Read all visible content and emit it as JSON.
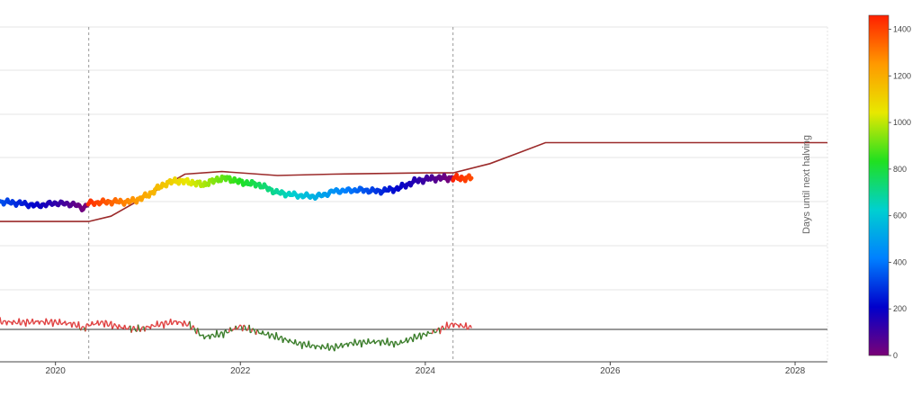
{
  "chart_data": {
    "type": "line",
    "ylabel": "Days until next halving",
    "x_ticks": [
      "2020",
      "2022",
      "2024",
      "2026",
      "2028"
    ],
    "x_tick_years": [
      2020,
      2022,
      2024,
      2026,
      2028
    ],
    "x_range": [
      2019.4,
      2028.35
    ],
    "halving_markers": [
      2020.36,
      2024.3
    ],
    "colorbar": {
      "ticks": [
        "0",
        "200",
        "400",
        "600",
        "800",
        "1000",
        "1200",
        "1400"
      ],
      "tick_values": [
        0,
        200,
        400,
        600,
        800,
        1000,
        1200,
        1400
      ],
      "range": [
        0,
        1460
      ],
      "colorscale": [
        "#7a0177",
        "#0000cc",
        "#0080ff",
        "#00d0d0",
        "#20e020",
        "#e8e800",
        "#ff9900",
        "#ff2000"
      ]
    },
    "colors": {
      "model_line": "#9b2a2a",
      "osc_positive": "#e04040",
      "osc_negative": "#3a7d2a",
      "baseline": "#333333",
      "grid": "#e6e6e6",
      "halving_line": "#999999"
    },
    "series": [
      {
        "kind": "model",
        "points": [
          [
            2019.4,
            0.74
          ],
          [
            2020.36,
            0.74
          ],
          [
            2020.6,
            0.72
          ],
          [
            2021.0,
            0.64
          ],
          [
            2021.4,
            0.56
          ],
          [
            2021.8,
            0.55
          ],
          [
            2022.4,
            0.565
          ],
          [
            2023.0,
            0.56
          ],
          [
            2024.0,
            0.555
          ],
          [
            2024.3,
            0.555
          ],
          [
            2024.7,
            0.52
          ],
          [
            2025.0,
            0.48
          ],
          [
            2025.3,
            0.44
          ],
          [
            2026.0,
            0.44
          ],
          [
            2028.35,
            0.44
          ]
        ]
      },
      {
        "kind": "price",
        "points": [
          [
            2019.4,
            0.665
          ],
          [
            2019.6,
            0.67
          ],
          [
            2019.8,
            0.68
          ],
          [
            2020.0,
            0.67
          ],
          [
            2020.2,
            0.675
          ],
          [
            2020.3,
            0.69
          ],
          [
            2020.36,
            0.67
          ],
          [
            2020.6,
            0.665
          ],
          [
            2020.8,
            0.665
          ],
          [
            2020.9,
            0.655
          ],
          [
            2021.0,
            0.64
          ],
          [
            2021.1,
            0.615
          ],
          [
            2021.2,
            0.595
          ],
          [
            2021.3,
            0.585
          ],
          [
            2021.45,
            0.59
          ],
          [
            2021.6,
            0.6
          ],
          [
            2021.75,
            0.58
          ],
          [
            2021.85,
            0.575
          ],
          [
            2022.0,
            0.59
          ],
          [
            2022.2,
            0.6
          ],
          [
            2022.4,
            0.63
          ],
          [
            2022.6,
            0.64
          ],
          [
            2022.8,
            0.645
          ],
          [
            2022.9,
            0.64
          ],
          [
            2023.0,
            0.625
          ],
          [
            2023.3,
            0.62
          ],
          [
            2023.5,
            0.625
          ],
          [
            2023.7,
            0.615
          ],
          [
            2023.9,
            0.585
          ],
          [
            2024.1,
            0.575
          ],
          [
            2024.3,
            0.575
          ],
          [
            2024.5,
            0.575
          ]
        ]
      },
      {
        "kind": "oscillator",
        "points": [
          [
            2019.4,
            0.5
          ],
          [
            2019.6,
            0.45
          ],
          [
            2019.8,
            0.5
          ],
          [
            2020.0,
            0.46
          ],
          [
            2020.2,
            0.35
          ],
          [
            2020.3,
            0.05
          ],
          [
            2020.36,
            0.3
          ],
          [
            2020.5,
            0.45
          ],
          [
            2020.7,
            0.15
          ],
          [
            2020.9,
            0.0
          ],
          [
            2021.1,
            0.3
          ],
          [
            2021.3,
            0.5
          ],
          [
            2021.45,
            0.3
          ],
          [
            2021.6,
            -0.5
          ],
          [
            2021.8,
            -0.3
          ],
          [
            2022.0,
            0.2
          ],
          [
            2022.2,
            -0.2
          ],
          [
            2022.4,
            -0.5
          ],
          [
            2022.6,
            -0.9
          ],
          [
            2022.8,
            -1.1
          ],
          [
            2023.0,
            -1.2
          ],
          [
            2023.2,
            -0.9
          ],
          [
            2023.5,
            -0.8
          ],
          [
            2023.7,
            -0.95
          ],
          [
            2023.9,
            -0.5
          ],
          [
            2024.1,
            -0.15
          ],
          [
            2024.3,
            0.35
          ],
          [
            2024.5,
            0.1
          ]
        ]
      }
    ]
  }
}
